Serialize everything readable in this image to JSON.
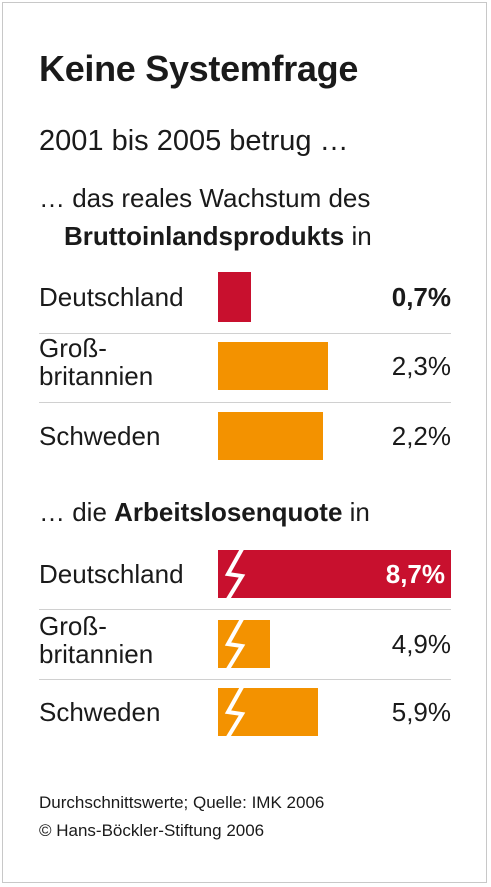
{
  "title": "Keine Systemfrage",
  "subtitle": "2001 bis 2005 betrug …",
  "chart_data": [
    {
      "type": "bar",
      "heading_pre": "… das reales Wachstum des",
      "heading_bold": "Bruttoinlandsprodukts",
      "heading_post": " in",
      "categories": [
        "Deutschland",
        "Groß-britannien",
        "Schweden"
      ],
      "category_lines": [
        [
          "Deutschland"
        ],
        [
          "Groß-",
          "britannien"
        ],
        [
          "Schweden"
        ]
      ],
      "values": [
        0.7,
        2.3,
        2.2
      ],
      "value_labels": [
        "0,7%",
        "2,3%",
        "2,2%"
      ],
      "colors": [
        "#c8102e",
        "#f39200",
        "#f39200"
      ],
      "highlight_index": 0
    },
    {
      "type": "bar",
      "heading_pre": "… die ",
      "heading_bold": "Arbeitslosenquote",
      "heading_post": " in",
      "categories": [
        "Deutschland",
        "Groß-britannien",
        "Schweden"
      ],
      "category_lines": [
        [
          "Deutschland"
        ],
        [
          "Groß-",
          "britannien"
        ],
        [
          "Schweden"
        ]
      ],
      "values": [
        8.7,
        4.9,
        5.9
      ],
      "value_labels": [
        "8,7%",
        "4,9%",
        "5,9%"
      ],
      "colors": [
        "#c8102e",
        "#f39200",
        "#f39200"
      ],
      "highlight_index": 0,
      "broken_axis": true
    }
  ],
  "footer": {
    "source": "Durchschnittswerte; Quelle: IMK 2006",
    "copyright": "© Hans-Böckler-Stiftung 2006"
  }
}
